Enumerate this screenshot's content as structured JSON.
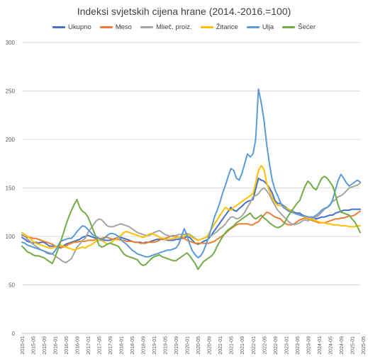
{
  "chart_data": {
    "type": "line",
    "title": "Indeksi svjetskih cijena hrane (2014.-2016.=100)",
    "xlabel": "",
    "ylabel": "",
    "ylim": [
      0,
      300
    ],
    "yticks": [
      0,
      50,
      100,
      150,
      200,
      250,
      300
    ],
    "grid": true,
    "legend_position": "top",
    "x_tick_labels": [
      "2015-01",
      "2015-05",
      "2015-09",
      "2016-01",
      "2016-05",
      "2016-09",
      "2017-01",
      "2017-05",
      "2017-09",
      "2018-01",
      "2018-05",
      "2018-09",
      "2019-01",
      "2019-05",
      "2019-09",
      "2020-01",
      "2020-05",
      "2020-09",
      "2021-01",
      "2021-05",
      "2021-09",
      "2022-01",
      "2022-05",
      "2022-09",
      "2023-01",
      "2023-05",
      "2023-09",
      "2024-01",
      "2024-05",
      "2024-09",
      "2025-01",
      "2025-05"
    ],
    "series": [
      {
        "name": "Ukupno",
        "color": "#4472c4",
        "values": [
          99,
          97,
          95,
          94,
          93,
          94,
          93,
          94,
          94,
          92,
          90,
          90,
          90,
          89,
          88,
          90,
          92,
          93,
          94,
          95,
          96,
          97,
          99,
          100,
          101,
          100,
          99,
          98,
          98,
          97,
          96,
          96,
          96,
          97,
          98,
          99,
          99,
          98,
          97,
          96,
          95,
          94,
          94,
          94,
          93,
          94,
          94,
          95,
          96,
          97,
          97,
          97,
          97,
          96,
          96,
          96,
          97,
          97,
          98,
          98,
          100,
          99,
          96,
          93,
          92,
          93,
          95,
          96,
          98,
          102,
          106,
          110,
          114,
          118,
          122,
          126,
          130,
          127,
          126,
          129,
          131,
          134,
          136,
          137,
          138,
          149,
          160,
          158,
          157,
          154,
          150,
          145,
          137,
          134,
          134,
          132,
          130,
          127,
          127,
          125,
          124,
          124,
          122,
          121,
          120,
          120,
          119,
          118,
          119,
          120,
          120,
          121,
          122,
          122,
          124,
          125,
          126,
          127,
          127,
          127,
          128,
          128,
          128,
          128
        ]
      },
      {
        "name": "Meso",
        "color": "#ed7d31",
        "values": [
          101,
          100,
          99,
          99,
          98,
          98,
          97,
          96,
          95,
          94,
          93,
          92,
          90,
          89,
          89,
          89,
          90,
          92,
          93,
          94,
          94,
          95,
          95,
          95,
          96,
          96,
          96,
          97,
          98,
          98,
          99,
          99,
          98,
          97,
          97,
          97,
          96,
          96,
          95,
          95,
          95,
          94,
          94,
          93,
          93,
          93,
          94,
          94,
          94,
          95,
          96,
          98,
          98,
          99,
          100,
          101,
          100,
          99,
          99,
          98,
          96,
          95,
          94,
          93,
          93,
          93,
          93,
          93,
          93,
          94,
          95,
          97,
          99,
          101,
          103,
          106,
          108,
          110,
          112,
          113,
          113,
          113,
          113,
          112,
          112,
          114,
          115,
          119,
          122,
          125,
          124,
          122,
          120,
          119,
          118,
          115,
          113,
          112,
          112,
          113,
          115,
          117,
          118,
          119,
          118,
          117,
          116,
          115,
          114,
          114,
          114,
          115,
          116,
          117,
          118,
          118,
          119,
          119,
          120,
          121,
          121,
          122,
          124,
          126
        ]
      },
      {
        "name": "Mlieč. proiz.",
        "color": "#a5a5a5",
        "values": [
          102,
          100,
          97,
          95,
          92,
          90,
          88,
          86,
          85,
          84,
          83,
          82,
          80,
          78,
          76,
          74,
          73,
          75,
          77,
          83,
          89,
          92,
          96,
          98,
          104,
          108,
          112,
          116,
          118,
          117,
          114,
          111,
          110,
          110,
          111,
          112,
          113,
          112,
          111,
          110,
          108,
          106,
          104,
          103,
          102,
          101,
          101,
          102,
          104,
          105,
          106,
          104,
          102,
          101,
          100,
          100,
          101,
          102,
          102,
          102,
          103,
          102,
          100,
          98,
          96,
          97,
          98,
          99,
          100,
          101,
          103,
          105,
          108,
          110,
          113,
          117,
          120,
          120,
          118,
          119,
          121,
          125,
          130,
          135,
          141,
          142,
          144,
          148,
          150,
          147,
          143,
          137,
          132,
          127,
          124,
          121,
          118,
          115,
          113,
          112,
          113,
          114,
          116,
          117,
          116,
          118,
          119,
          120,
          122,
          125,
          128,
          130,
          133,
          136,
          138,
          141,
          142,
          144,
          147,
          150,
          151,
          152,
          153,
          155
        ]
      },
      {
        "name": "Žitarice",
        "color": "#ffc000",
        "values": [
          104,
          102,
          100,
          98,
          95,
          93,
          92,
          91,
          90,
          89,
          88,
          88,
          89,
          90,
          91,
          90,
          89,
          88,
          87,
          86,
          87,
          88,
          89,
          88,
          90,
          91,
          93,
          95,
          96,
          96,
          94,
          92,
          93,
          95,
          97,
          99,
          101,
          104,
          105,
          104,
          103,
          102,
          101,
          100,
          99,
          100,
          102,
          103,
          102,
          101,
          99,
          98,
          97,
          97,
          97,
          98,
          99,
          99,
          100,
          100,
          102,
          101,
          99,
          97,
          96,
          97,
          98,
          99,
          103,
          108,
          113,
          117,
          122,
          126,
          130,
          128,
          127,
          130,
          132,
          134,
          136,
          138,
          140,
          142,
          144,
          155,
          168,
          173,
          169,
          155,
          147,
          140,
          135,
          132,
          132,
          131,
          129,
          128,
          126,
          124,
          123,
          122,
          121,
          120,
          119,
          118,
          117,
          116,
          115,
          114,
          114,
          113,
          113,
          112,
          112,
          112,
          111,
          111,
          111,
          110,
          110,
          110,
          111,
          111
        ]
      },
      {
        "name": "Ulja",
        "color": "#5b9bd5",
        "values": [
          94,
          93,
          91,
          90,
          89,
          88,
          87,
          86,
          85,
          83,
          82,
          82,
          85,
          90,
          95,
          96,
          97,
          98,
          98,
          101,
          105,
          108,
          111,
          110,
          107,
          104,
          101,
          100,
          98,
          96,
          98,
          101,
          103,
          103,
          102,
          100,
          97,
          94,
          92,
          89,
          86,
          84,
          82,
          81,
          80,
          79,
          79,
          80,
          81,
          82,
          83,
          84,
          85,
          86,
          86,
          87,
          88,
          92,
          100,
          108,
          101,
          92,
          85,
          81,
          78,
          80,
          85,
          92,
          100,
          110,
          120,
          127,
          135,
          145,
          153,
          162,
          170,
          168,
          160,
          158,
          165,
          175,
          185,
          182,
          185,
          200,
          252,
          238,
          220,
          195,
          175,
          158,
          148,
          142,
          135,
          130,
          128,
          126,
          125,
          124,
          123,
          122,
          121,
          121,
          120,
          120,
          120,
          122,
          124,
          127,
          129,
          130,
          132,
          138,
          148,
          158,
          164,
          160,
          155,
          152,
          154,
          156,
          158,
          156
        ]
      },
      {
        "name": "Šećer",
        "color": "#70ad47",
        "values": [
          90,
          87,
          84,
          83,
          81,
          80,
          80,
          79,
          78,
          76,
          74,
          72,
          78,
          86,
          94,
          103,
          112,
          120,
          127,
          133,
          138,
          130,
          126,
          124,
          120,
          113,
          106,
          99,
          91,
          89,
          90,
          92,
          93,
          92,
          91,
          90,
          86,
          82,
          80,
          79,
          78,
          77,
          76,
          72,
          70,
          71,
          74,
          77,
          79,
          80,
          81,
          79,
          78,
          77,
          76,
          75,
          75,
          77,
          79,
          81,
          83,
          80,
          76,
          72,
          66,
          70,
          74,
          76,
          78,
          80,
          84,
          90,
          95,
          100,
          104,
          107,
          109,
          111,
          114,
          116,
          118,
          120,
          122,
          124,
          120,
          118,
          120,
          122,
          119,
          117,
          114,
          112,
          110,
          109,
          110,
          112,
          117,
          122,
          126,
          130,
          134,
          137,
          145,
          152,
          157,
          154,
          150,
          148,
          154,
          160,
          162,
          160,
          156,
          152,
          143,
          132,
          125,
          124,
          123,
          122,
          118,
          115,
          110,
          104
        ]
      }
    ]
  }
}
